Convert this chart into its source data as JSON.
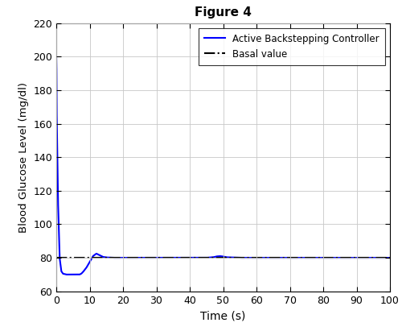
{
  "title": "Figure 4",
  "xlabel": "Time (s)",
  "ylabel": "Blood Glucose Level (mg/dl)",
  "xlim": [
    0,
    100
  ],
  "ylim": [
    60,
    220
  ],
  "yticks": [
    60,
    80,
    100,
    120,
    140,
    160,
    180,
    200,
    220
  ],
  "xticks": [
    0,
    10,
    20,
    30,
    40,
    50,
    60,
    70,
    80,
    90,
    100
  ],
  "basal_value": 80,
  "line_color": "#0000FF",
  "basal_color": "#000000",
  "legend_labels": [
    "Active Backstepping Controller",
    "Basal value"
  ],
  "background_color": "#ffffff",
  "grid_color": "#c8c8c8",
  "curve_points": {
    "t": [
      0,
      0.05,
      0.1,
      0.5,
      1.0,
      1.5,
      2.0,
      3.0,
      4.0,
      5.0,
      6.0,
      7.0,
      7.5,
      8.0,
      9.0,
      10.0,
      11.0,
      12.0,
      13.0,
      14.0,
      15.0,
      17.0,
      20.0,
      25.0,
      30.0,
      35.0,
      40.0,
      45.0,
      47.0,
      48.0,
      49.0,
      50.0,
      51.0,
      55.0,
      60.0,
      70.0,
      80.0,
      90.0,
      100.0
    ],
    "y": [
      200,
      195,
      170,
      115,
      80,
      72,
      70.5,
      70,
      70,
      70,
      70,
      70,
      70.5,
      71.5,
      74.0,
      77.5,
      81.0,
      82.5,
      81.5,
      80.5,
      80.2,
      80.0,
      80.0,
      80.0,
      80.0,
      80.0,
      80.0,
      80.0,
      80.3,
      80.8,
      81.0,
      80.8,
      80.3,
      80.0,
      80.0,
      80.0,
      80.0,
      80.0,
      80.0
    ]
  }
}
